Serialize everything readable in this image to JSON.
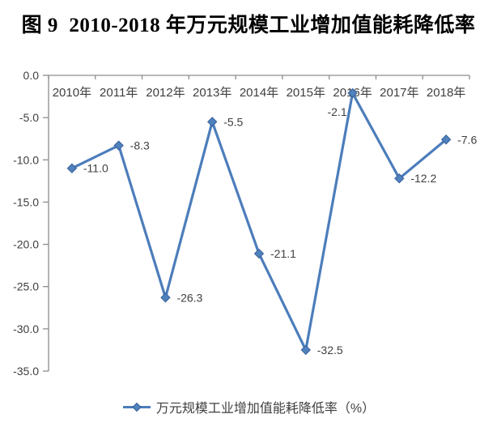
{
  "title": "图 9  2010-2018 年万元规模工业增加值能耗降低率",
  "colors": {
    "line": "#4C7DBB",
    "marker_fill": "#4F81BD",
    "marker_stroke": "#38619A",
    "axis": "#8C8C8C",
    "label_text": "#3F3F3F",
    "title_text": "#000000"
  },
  "chart_data": {
    "type": "line",
    "title": "图 9  2010-2018 年万元规模工业增加值能耗降低率",
    "categories": [
      "2010年",
      "2011年",
      "2012年",
      "2013年",
      "2014年",
      "2015年",
      "2016年",
      "2017年",
      "2018年"
    ],
    "series": [
      {
        "name": "万元规模工业增加值能耗降低率（%）",
        "values": [
          -11.0,
          -8.3,
          -26.3,
          -5.5,
          -21.1,
          -32.5,
          -2.1,
          -12.2,
          -7.6
        ]
      }
    ],
    "data_labels": [
      "-11.0",
      "-8.3",
      "-26.3",
      "-5.5",
      "-21.1",
      "-32.5",
      "-2.1",
      "-12.2",
      "-7.6"
    ],
    "data_label_positions": [
      "right",
      "right",
      "right",
      "right",
      "right",
      "right",
      "below",
      "right",
      "right"
    ],
    "xlabel": "",
    "ylabel": "",
    "ylim": [
      -35,
      0
    ],
    "ytick_step": 5,
    "ytick_labels": [
      "0.0",
      "-5.0",
      "-10.0",
      "-15.0",
      "-20.0",
      "-25.0",
      "-30.0",
      "-35.0"
    ],
    "grid": false,
    "marker": "diamond",
    "legend_position": "bottom",
    "category_axis_position": "top"
  },
  "legend": {
    "label": "万元规模工业增加值能耗降低率（%）"
  }
}
